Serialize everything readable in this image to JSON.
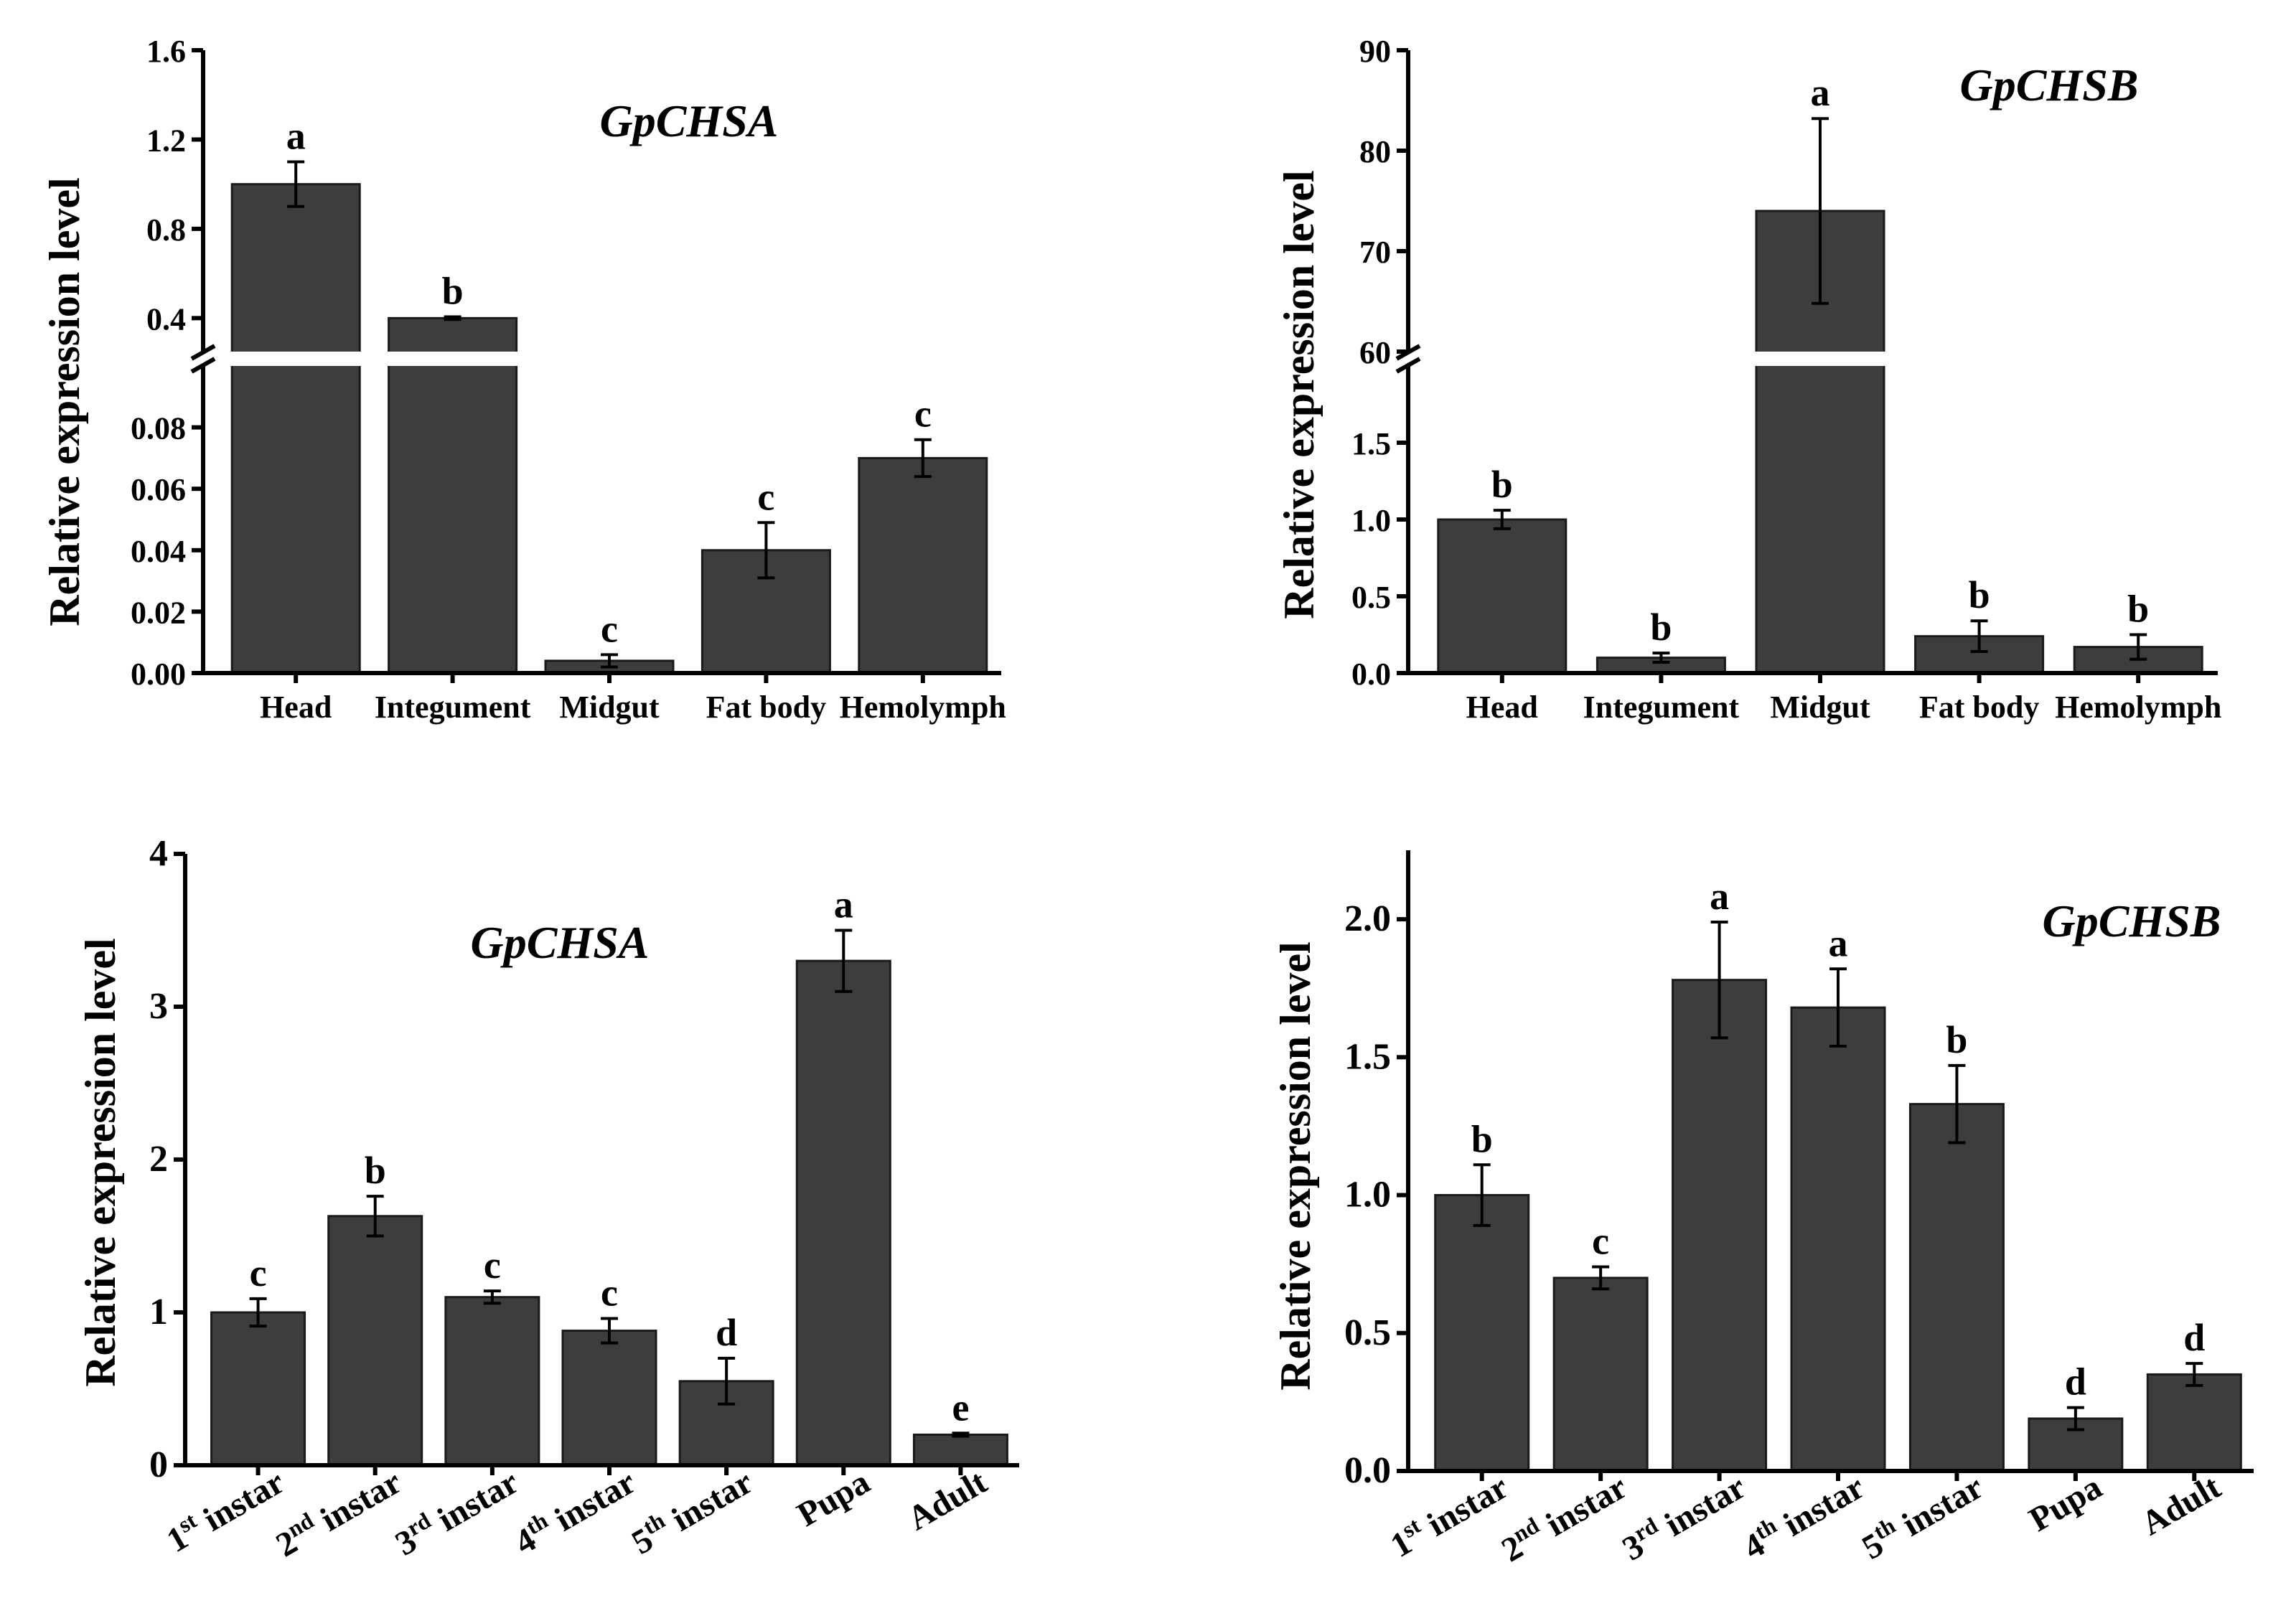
{
  "colors": {
    "bar": "#3d3d3d",
    "axis": "#000000",
    "background": "#ffffff"
  },
  "chart_data": [
    {
      "id": "chsa-tissue",
      "type": "bar",
      "title": "GpCHSA",
      "ylabel": "Relative expression level",
      "xlabel": "",
      "categories": [
        "Head",
        "Integument",
        "Midgut",
        "Fat body",
        "Hemolymph"
      ],
      "values": [
        1.0,
        0.4,
        0.004,
        0.04,
        0.07
      ],
      "errors": [
        0.1,
        0.006,
        0.002,
        0.009,
        0.006
      ],
      "significance": [
        "a",
        "b",
        "c",
        "c",
        "c"
      ],
      "broken_axis": true,
      "lower_range": [
        0,
        0.1
      ],
      "lower_ticks": [
        "0.00",
        "0.02",
        "0.04",
        "0.06",
        "0.08"
      ],
      "upper_range": [
        0.25,
        1.6
      ],
      "upper_ticks": [
        "0.4",
        "0.8",
        "1.2",
        "1.6"
      ]
    },
    {
      "id": "chsb-tissue",
      "type": "bar",
      "title": "GpCHSB",
      "ylabel": "Relative expression level",
      "xlabel": "",
      "categories": [
        "Head",
        "Integument",
        "Midgut",
        "Fat body",
        "Hemolymph"
      ],
      "values": [
        1.0,
        0.1,
        74.0,
        0.24,
        0.17
      ],
      "errors": [
        0.06,
        0.03,
        9.2,
        0.1,
        0.08
      ],
      "significance": [
        "b",
        "b",
        "a",
        "b",
        "b"
      ],
      "broken_axis": true,
      "lower_range": [
        0,
        2.0
      ],
      "lower_ticks": [
        "0.0",
        "0.5",
        "1.0",
        "1.5"
      ],
      "upper_range": [
        60,
        90
      ],
      "upper_ticks": [
        "60",
        "70",
        "80",
        "90"
      ]
    },
    {
      "id": "chsa-stage",
      "type": "bar",
      "title": "GpCHSA",
      "ylabel": "Relative expression level",
      "xlabel": "",
      "categories": [
        {
          "base": "1",
          "sup": "st",
          "rest": " instar"
        },
        {
          "base": "2",
          "sup": "nd",
          "rest": " instar"
        },
        {
          "base": "3",
          "sup": "rd",
          "rest": " instar"
        },
        {
          "base": "4",
          "sup": "th",
          "rest": " instar"
        },
        {
          "base": "5",
          "sup": "th",
          "rest": " instar"
        },
        {
          "base": "Pupa",
          "sup": "",
          "rest": ""
        },
        {
          "base": "Adult",
          "sup": "",
          "rest": ""
        }
      ],
      "values": [
        1.0,
        1.63,
        1.1,
        0.88,
        0.55,
        3.3,
        0.2
      ],
      "errors": [
        0.09,
        0.13,
        0.04,
        0.08,
        0.15,
        0.2,
        0.01
      ],
      "significance": [
        "c",
        "b",
        "c",
        "c",
        "d",
        "a",
        "e"
      ],
      "broken_axis": false,
      "ylim": [
        0,
        4
      ],
      "ticks": [
        "0",
        "1",
        "2",
        "3",
        "4"
      ]
    },
    {
      "id": "chsb-stage",
      "type": "bar",
      "title": "GpCHSB",
      "ylabel": "Relative expression level",
      "xlabel": "",
      "categories": [
        {
          "base": "1",
          "sup": "st",
          "rest": " instar"
        },
        {
          "base": "2",
          "sup": "nd",
          "rest": " instar"
        },
        {
          "base": "3",
          "sup": "rd",
          "rest": " instar"
        },
        {
          "base": "4",
          "sup": "th",
          "rest": " instar"
        },
        {
          "base": "5",
          "sup": "th",
          "rest": " instar"
        },
        {
          "base": "Pupa",
          "sup": "",
          "rest": ""
        },
        {
          "base": "Adult",
          "sup": "",
          "rest": ""
        }
      ],
      "values": [
        1.0,
        0.7,
        1.78,
        1.68,
        1.33,
        0.19,
        0.35
      ],
      "errors": [
        0.11,
        0.04,
        0.21,
        0.14,
        0.14,
        0.04,
        0.04
      ],
      "significance": [
        "b",
        "c",
        "a",
        "a",
        "b",
        "d",
        "d"
      ],
      "broken_axis": false,
      "ylim": [
        0,
        2.25
      ],
      "ticks": [
        "0.0",
        "0.5",
        "1.0",
        "1.5",
        "2.0"
      ]
    }
  ]
}
